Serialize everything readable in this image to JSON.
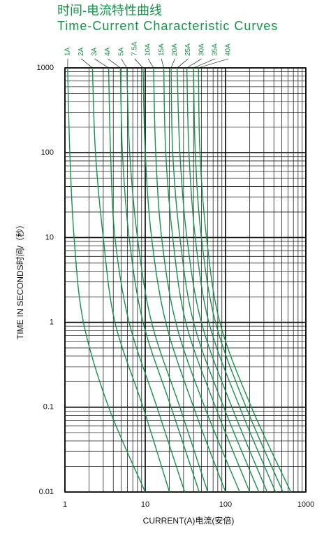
{
  "chart_data": {
    "type": "line",
    "title": "时间-电流特性曲线",
    "subtitle": "Time-Current Characteristic Curves",
    "x_label": "CURRENT(A)电流(安倍)",
    "y_label": "TIME IN SECONDS时间/（秒）",
    "x_scale": "log",
    "y_scale": "log",
    "xlim": [
      1,
      1000
    ],
    "ylim": [
      0.01,
      1000
    ],
    "xticks": [
      1,
      10,
      100,
      1000
    ],
    "yticks": [
      0.01,
      0.1,
      1,
      10,
      100,
      1000
    ],
    "grid": true,
    "minor_grid": true,
    "series": [
      {
        "name": "1A",
        "color": "#17924a",
        "x": [
          1.08,
          1.15,
          1.3,
          1.7,
          3.5,
          10
        ],
        "values": [
          1000,
          100,
          10,
          1,
          0.1,
          0.01
        ]
      },
      {
        "name": "2A",
        "color": "#17924a",
        "x": [
          2.2,
          2.4,
          3.0,
          4.2,
          9.4,
          20
        ],
        "values": [
          1000,
          100,
          10,
          1,
          0.1,
          0.01
        ]
      },
      {
        "name": "3A",
        "color": "#17924a",
        "x": [
          3.5,
          3.7,
          4.2,
          6.3,
          14,
          31
        ],
        "values": [
          1000,
          100,
          10,
          1,
          0.1,
          0.01
        ]
      },
      {
        "name": "4A",
        "color": "#17924a",
        "x": [
          4.9,
          5.2,
          6.3,
          9.4,
          21,
          47
        ],
        "values": [
          1000,
          100,
          10,
          1,
          0.1,
          0.01
        ]
      },
      {
        "name": "5A",
        "color": "#17924a",
        "x": [
          5.9,
          6.4,
          8,
          12,
          27,
          60
        ],
        "values": [
          1000,
          100,
          10,
          1,
          0.1,
          0.01
        ]
      },
      {
        "name": "7.5A",
        "color": "#17924a",
        "x": [
          9.4,
          10,
          12,
          18,
          40,
          100
        ],
        "values": [
          1000,
          100,
          10,
          1,
          0.1,
          0.01
        ]
      },
      {
        "name": "10A",
        "color": "#17924a",
        "x": [
          12.7,
          13.5,
          16,
          24,
          55,
          150
        ],
        "values": [
          1000,
          100,
          10,
          1,
          0.1,
          0.01
        ]
      },
      {
        "name": "15A",
        "color": "#17924a",
        "x": [
          17,
          18,
          22,
          32,
          75,
          200
        ],
        "values": [
          1000,
          100,
          10,
          1,
          0.1,
          0.01
        ]
      },
      {
        "name": "20A",
        "color": "#17924a",
        "x": [
          21,
          22,
          27,
          40,
          95,
          260
        ],
        "values": [
          1000,
          100,
          10,
          1,
          0.1,
          0.01
        ]
      },
      {
        "name": "25A",
        "color": "#17924a",
        "x": [
          25,
          27,
          33,
          50,
          120,
          330
        ],
        "values": [
          1000,
          100,
          10,
          1,
          0.1,
          0.01
        ]
      },
      {
        "name": "30A",
        "color": "#17924a",
        "x": [
          33,
          35,
          42,
          62,
          150,
          420
        ],
        "values": [
          1000,
          100,
          10,
          1,
          0.1,
          0.01
        ]
      },
      {
        "name": "35A",
        "color": "#17924a",
        "x": [
          40,
          42,
          50,
          75,
          180,
          520
        ],
        "values": [
          1000,
          100,
          10,
          1,
          0.1,
          0.01
        ]
      },
      {
        "name": "40A",
        "color": "#17924a",
        "x": [
          46,
          48,
          58,
          85,
          210,
          650
        ],
        "values": [
          1000,
          100,
          10,
          1,
          0.1,
          0.01
        ]
      }
    ]
  }
}
